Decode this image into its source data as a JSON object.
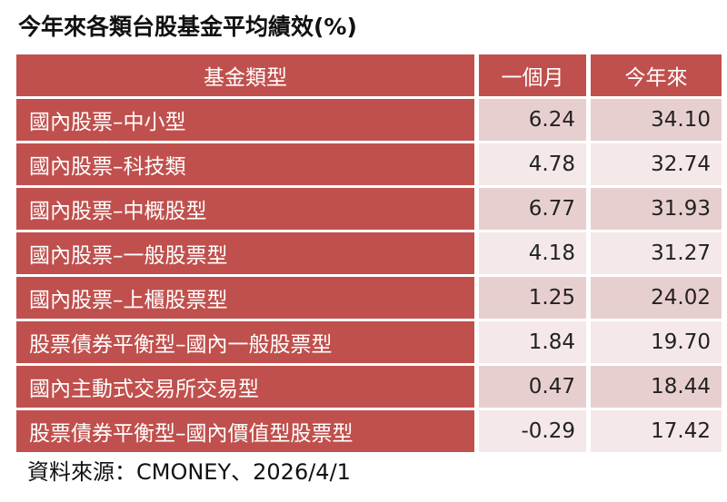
{
  "title": "今年來各類台股基金平均績效(%)",
  "table": {
    "header": [
      "基金類型",
      "一個月",
      "今年來"
    ],
    "rows": [
      [
        "國內股票–中小型",
        "6.24",
        "34.10"
      ],
      [
        "國內股票–科技類",
        "4.78",
        "32.74"
      ],
      [
        "國內股票–中概股型",
        "6.77",
        "31.93"
      ],
      [
        "國內股票–一般股票型",
        "4.18",
        "31.27"
      ],
      [
        "國內股票–上櫃股票型",
        "1.25",
        "24.02"
      ],
      [
        "股票債券平衡型–國內一般股票型",
        "1.84",
        "19.70"
      ],
      [
        "國內主動式交易所交易型",
        "0.47",
        "18.44"
      ],
      [
        "股票債券平衡型–國內價值型股票型",
        "-0.29",
        "17.42"
      ]
    ]
  },
  "source": "資料來源：CMONEY、2026/4/1"
}
